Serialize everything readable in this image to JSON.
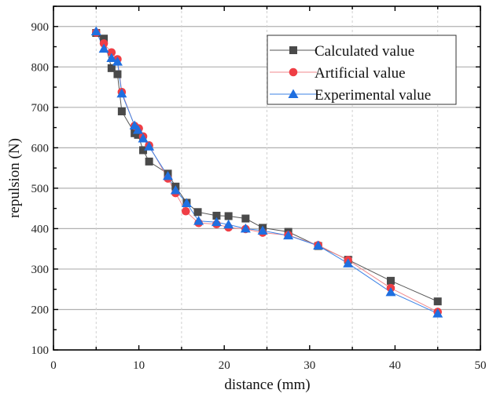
{
  "chart_data": {
    "type": "line",
    "title": "",
    "xlabel": "distance (mm)",
    "ylabel": "repulsion (N)",
    "xlim": [
      0,
      50
    ],
    "ylim": [
      100,
      950
    ],
    "xticks": [
      0,
      10,
      20,
      30,
      40,
      50
    ],
    "xtick_labels": [
      "0",
      "10",
      "20",
      "30",
      "40",
      "50"
    ],
    "yticks": [
      100,
      200,
      300,
      400,
      500,
      600,
      700,
      800,
      900
    ],
    "ytick_labels": [
      "100",
      "200",
      "300",
      "400",
      "500",
      "600",
      "700",
      "800",
      "900"
    ],
    "grid": {
      "horizontal": "solid at major y ticks",
      "vertical": "dashed at minor x ticks (5, 15, 25, 35, 45)"
    },
    "legend_position": "top-right",
    "series": [
      {
        "name": "Calculated value",
        "marker": "square",
        "color": "#4a4a4a",
        "line_color": "#555555",
        "x": [
          5.0,
          5.9,
          6.8,
          7.5,
          8.0,
          9.5,
          9.9,
          10.5,
          11.2,
          13.4,
          14.3,
          15.6,
          16.9,
          19.1,
          20.5,
          22.5,
          24.5,
          27.5,
          31.0,
          34.5,
          39.5,
          45.0
        ],
        "y": [
          884,
          870,
          797,
          782,
          690,
          636,
          632,
          594,
          566,
          536,
          504,
          464,
          441,
          432,
          431,
          425,
          402,
          392,
          357,
          323,
          271,
          220
        ]
      },
      {
        "name": "Artificial value",
        "marker": "circle",
        "color": "#ef3e45",
        "line_color": "#f08a8e",
        "x": [
          5.0,
          5.9,
          6.8,
          7.5,
          8.0,
          9.5,
          10.0,
          10.5,
          11.2,
          13.4,
          14.3,
          15.5,
          17.0,
          19.1,
          20.5,
          22.5,
          24.5,
          27.5,
          31.0,
          34.5,
          39.5,
          45.0
        ],
        "y": [
          885,
          858,
          836,
          819,
          738,
          654,
          648,
          628,
          606,
          524,
          488,
          443,
          414,
          411,
          403,
          399,
          390,
          384,
          359,
          322,
          253,
          194
        ]
      },
      {
        "name": "Experimental value",
        "marker": "triangle",
        "color": "#1f6fe0",
        "line_color": "#3b82e6",
        "x": [
          5.0,
          5.9,
          6.8,
          7.5,
          8.0,
          9.5,
          9.9,
          10.5,
          11.2,
          13.4,
          14.3,
          15.6,
          17.0,
          19.1,
          20.5,
          22.5,
          24.5,
          27.5,
          31.0,
          34.5,
          39.5,
          45.0
        ],
        "y": [
          888,
          845,
          822,
          813,
          734,
          655,
          644,
          623,
          603,
          530,
          495,
          463,
          419,
          416,
          410,
          400,
          395,
          383,
          358,
          314,
          243,
          190
        ]
      }
    ]
  }
}
